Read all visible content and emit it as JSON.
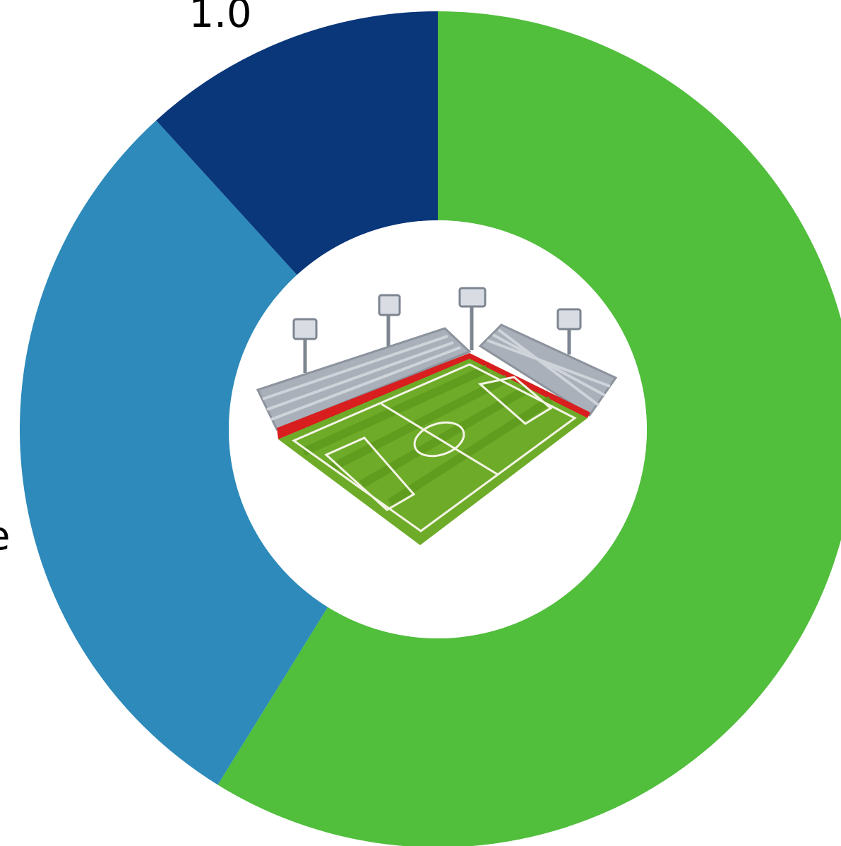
{
  "chart_data": {
    "type": "pie",
    "style": "donut",
    "title": "",
    "slices": [
      {
        "value": 5.0,
        "color": "#51be3c"
      },
      {
        "value": 2.5,
        "color": "#2d8aba"
      },
      {
        "value": 1.0,
        "color": "#0a367a"
      }
    ],
    "labels": [
      {
        "text": "1.0",
        "slice": 2
      },
      {
        "text": "e",
        "slice": 1
      }
    ],
    "start_direction": "top",
    "direction": "clockwise",
    "center_image_icon": "soccer-stadium-icon"
  }
}
